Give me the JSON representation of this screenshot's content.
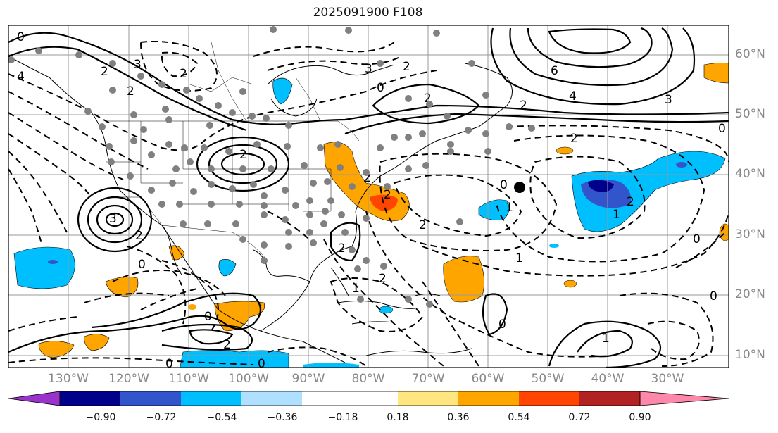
{
  "title": "2025091900 F108",
  "lat_labels": [
    "60°N",
    "50°N",
    "40°N",
    "30°N",
    "20°N",
    "10°N"
  ],
  "lon_labels": [
    "130°W",
    "120°W",
    "110°W",
    "100°W",
    "90°W",
    "80°W",
    "70°W",
    "60°W",
    "50°W",
    "40°W",
    "30°W"
  ],
  "colorbar": {
    "ticks": [
      "−0.90",
      "−0.72",
      "−0.54",
      "−0.36",
      "−0.18",
      "0.18",
      "0.36",
      "0.54",
      "0.72",
      "0.90"
    ],
    "colors": [
      "#9933cc",
      "#00008b",
      "#3355cc",
      "#00bfff",
      "#b0e0ff",
      "#ffffff",
      "#ffe680",
      "#ffa500",
      "#ff4500",
      "#b22222",
      "#ff88aa"
    ]
  },
  "contour_labels": [
    "0",
    "4",
    "2",
    "3",
    "2",
    "2",
    "3",
    "0",
    "2",
    "2",
    "6",
    "4",
    "3",
    "2",
    "2",
    "2",
    "3",
    "2",
    "0",
    "2",
    "0",
    "1",
    "2",
    "2",
    "1",
    "2",
    "0",
    "2",
    "1",
    "0",
    "2",
    "1",
    "2",
    "0",
    "0",
    "0",
    "1",
    "0",
    "0"
  ]
}
